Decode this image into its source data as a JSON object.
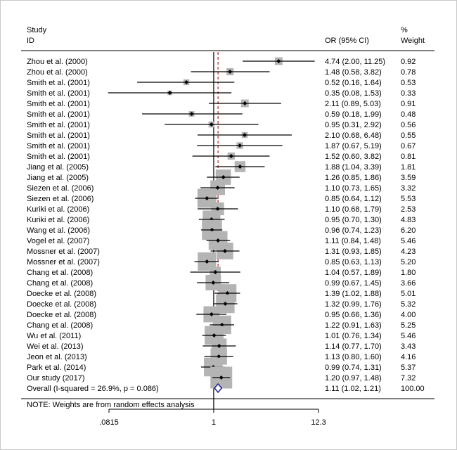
{
  "chart_data": {
    "type": "forest",
    "header": {
      "study_line1": "Study",
      "study_line2": "ID",
      "or_label": "OR (95% CI)",
      "weight_line1": "%",
      "weight_line2": "Weight"
    },
    "studies": [
      {
        "id": "Zhou et al. (2000)",
        "or": 4.74,
        "lo": 2.0,
        "hi": 11.25,
        "ci_text": "4.74 (2.00, 11.25)",
        "weight": 0.92,
        "weight_text": "0.92"
      },
      {
        "id": "Zhou et al. (2000)",
        "or": 1.48,
        "lo": 0.58,
        "hi": 3.82,
        "ci_text": "1.48 (0.58, 3.82)",
        "weight": 0.78,
        "weight_text": "0.78"
      },
      {
        "id": "Smith et al. (2001)",
        "or": 0.52,
        "lo": 0.16,
        "hi": 1.64,
        "ci_text": "0.52 (0.16, 1.64)",
        "weight": 0.53,
        "weight_text": "0.53"
      },
      {
        "id": "Smith et al. (2001)",
        "or": 0.35,
        "lo": 0.08,
        "hi": 1.53,
        "ci_text": "0.35 (0.08, 1.53)",
        "weight": 0.33,
        "weight_text": "0.33"
      },
      {
        "id": "Smith et al. (2001)",
        "or": 2.11,
        "lo": 0.89,
        "hi": 5.03,
        "ci_text": "2.11 (0.89, 5.03)",
        "weight": 0.91,
        "weight_text": "0.91"
      },
      {
        "id": "Smith et al. (2001)",
        "or": 0.59,
        "lo": 0.18,
        "hi": 1.99,
        "ci_text": "0.59 (0.18, 1.99)",
        "weight": 0.48,
        "weight_text": "0.48"
      },
      {
        "id": "Smith et al. (2001)",
        "or": 0.95,
        "lo": 0.31,
        "hi": 2.92,
        "ci_text": "0.95 (0.31, 2.92)",
        "weight": 0.56,
        "weight_text": "0.56"
      },
      {
        "id": "Smith et al. (2001)",
        "or": 2.1,
        "lo": 0.68,
        "hi": 6.48,
        "ci_text": "2.10 (0.68, 6.48)",
        "weight": 0.55,
        "weight_text": "0.55"
      },
      {
        "id": "Smith et al. (2001)",
        "or": 1.87,
        "lo": 0.67,
        "hi": 5.19,
        "ci_text": "1.87 (0.67, 5.19)",
        "weight": 0.67,
        "weight_text": "0.67"
      },
      {
        "id": "Smith et al. (2001)",
        "or": 1.52,
        "lo": 0.6,
        "hi": 3.82,
        "ci_text": "1.52 (0.60, 3.82)",
        "weight": 0.81,
        "weight_text": "0.81"
      },
      {
        "id": "Jiang et al. (2005)",
        "or": 1.88,
        "lo": 1.04,
        "hi": 3.39,
        "ci_text": "1.88 (1.04, 3.39)",
        "weight": 1.81,
        "weight_text": "1.81"
      },
      {
        "id": "Jiang et al. (2005)",
        "or": 1.26,
        "lo": 0.85,
        "hi": 1.86,
        "ci_text": "1.26 (0.85, 1.86)",
        "weight": 3.59,
        "weight_text": "3.59"
      },
      {
        "id": "Siezen et al. (2006)",
        "or": 1.1,
        "lo": 0.73,
        "hi": 1.65,
        "ci_text": "1.10 (0.73, 1.65)",
        "weight": 3.32,
        "weight_text": "3.32"
      },
      {
        "id": "Siezen et al. (2006)",
        "or": 0.85,
        "lo": 0.64,
        "hi": 1.12,
        "ci_text": "0.85 (0.64, 1.12)",
        "weight": 5.53,
        "weight_text": "5.53"
      },
      {
        "id": "Kuriki et al. (2006)",
        "or": 1.1,
        "lo": 0.68,
        "hi": 1.79,
        "ci_text": "1.10 (0.68, 1.79)",
        "weight": 2.53,
        "weight_text": "2.53"
      },
      {
        "id": "Kuriki et al. (2006)",
        "or": 0.95,
        "lo": 0.7,
        "hi": 1.3,
        "ci_text": "0.95 (0.70, 1.30)",
        "weight": 4.83,
        "weight_text": "4.83"
      },
      {
        "id": "Wang et al. (2006)",
        "or": 0.96,
        "lo": 0.74,
        "hi": 1.23,
        "ci_text": "0.96 (0.74, 1.23)",
        "weight": 6.2,
        "weight_text": "6.20"
      },
      {
        "id": "Vogel et al. (2007)",
        "or": 1.11,
        "lo": 0.84,
        "hi": 1.48,
        "ci_text": "1.11 (0.84, 1.48)",
        "weight": 5.46,
        "weight_text": "5.46"
      },
      {
        "id": "Mossner et al. (2007)",
        "or": 1.31,
        "lo": 0.93,
        "hi": 1.85,
        "ci_text": "1.31 (0.93, 1.85)",
        "weight": 4.23,
        "weight_text": "4.23"
      },
      {
        "id": "Mossner et al. (2007)",
        "or": 0.85,
        "lo": 0.63,
        "hi": 1.13,
        "ci_text": "0.85 (0.63, 1.13)",
        "weight": 5.2,
        "weight_text": "5.20"
      },
      {
        "id": "Chang et al. (2008)",
        "or": 1.04,
        "lo": 0.57,
        "hi": 1.89,
        "ci_text": "1.04 (0.57, 1.89)",
        "weight": 1.8,
        "weight_text": "1.80"
      },
      {
        "id": "Chang et al. (2008)",
        "or": 0.99,
        "lo": 0.67,
        "hi": 1.45,
        "ci_text": "0.99 (0.67, 1.45)",
        "weight": 3.66,
        "weight_text": "3.66"
      },
      {
        "id": "Doecke et al. (2008)",
        "or": 1.39,
        "lo": 1.02,
        "hi": 1.88,
        "ci_text": "1.39 (1.02, 1.88)",
        "weight": 5.01,
        "weight_text": "5.01"
      },
      {
        "id": "Doecke et al. (2008)",
        "or": 1.32,
        "lo": 0.99,
        "hi": 1.76,
        "ci_text": "1.32 (0.99, 1.76)",
        "weight": 5.32,
        "weight_text": "5.32"
      },
      {
        "id": "Doecke et al. (2008)",
        "or": 0.95,
        "lo": 0.66,
        "hi": 1.36,
        "ci_text": "0.95 (0.66, 1.36)",
        "weight": 4.0,
        "weight_text": "4.00"
      },
      {
        "id": "Chang et al. (2008)",
        "or": 1.22,
        "lo": 0.91,
        "hi": 1.63,
        "ci_text": "1.22 (0.91, 1.63)",
        "weight": 5.25,
        "weight_text": "5.25"
      },
      {
        "id": "Wu et al. (2011)",
        "or": 1.01,
        "lo": 0.76,
        "hi": 1.34,
        "ci_text": "1.01 (0.76, 1.34)",
        "weight": 5.46,
        "weight_text": "5.46"
      },
      {
        "id": "Wei et al. (2013)",
        "or": 1.14,
        "lo": 0.77,
        "hi": 1.7,
        "ci_text": "1.14 (0.77, 1.70)",
        "weight": 3.43,
        "weight_text": "3.43"
      },
      {
        "id": "Jeon et al. (2013)",
        "or": 1.13,
        "lo": 0.8,
        "hi": 1.6,
        "ci_text": "1.13 (0.80, 1.60)",
        "weight": 4.16,
        "weight_text": "4.16"
      },
      {
        "id": "Park et al. (2014)",
        "or": 0.99,
        "lo": 0.74,
        "hi": 1.31,
        "ci_text": "0.99 (0.74, 1.31)",
        "weight": 5.37,
        "weight_text": "5.37"
      },
      {
        "id": "Our study (2017)",
        "or": 1.2,
        "lo": 0.97,
        "hi": 1.48,
        "ci_text": "1.20 (0.97, 1.48)",
        "weight": 7.32,
        "weight_text": "7.32"
      }
    ],
    "overall": {
      "label": "Overall  (I-squared = 26.9%, p = 0.086)",
      "or": 1.11,
      "lo": 1.02,
      "hi": 1.21,
      "ci_text": "1.11 (1.02, 1.21)",
      "weight_text": "100.00"
    },
    "note": "NOTE: Weights are from random effects analysis",
    "x_scale": "log",
    "xlim": [
      0.0815,
      12.3
    ],
    "x_ticks": [
      {
        "value": 0.0815,
        "label": ".0815"
      },
      {
        "value": 1,
        "label": "1"
      },
      {
        "value": 12.3,
        "label": "12.3"
      }
    ],
    "null_line": 1,
    "colors": {
      "box": "#b4b4b4",
      "line": "#000000",
      "overall_line": "#b22222",
      "diamond": "#1f1f8f"
    }
  }
}
